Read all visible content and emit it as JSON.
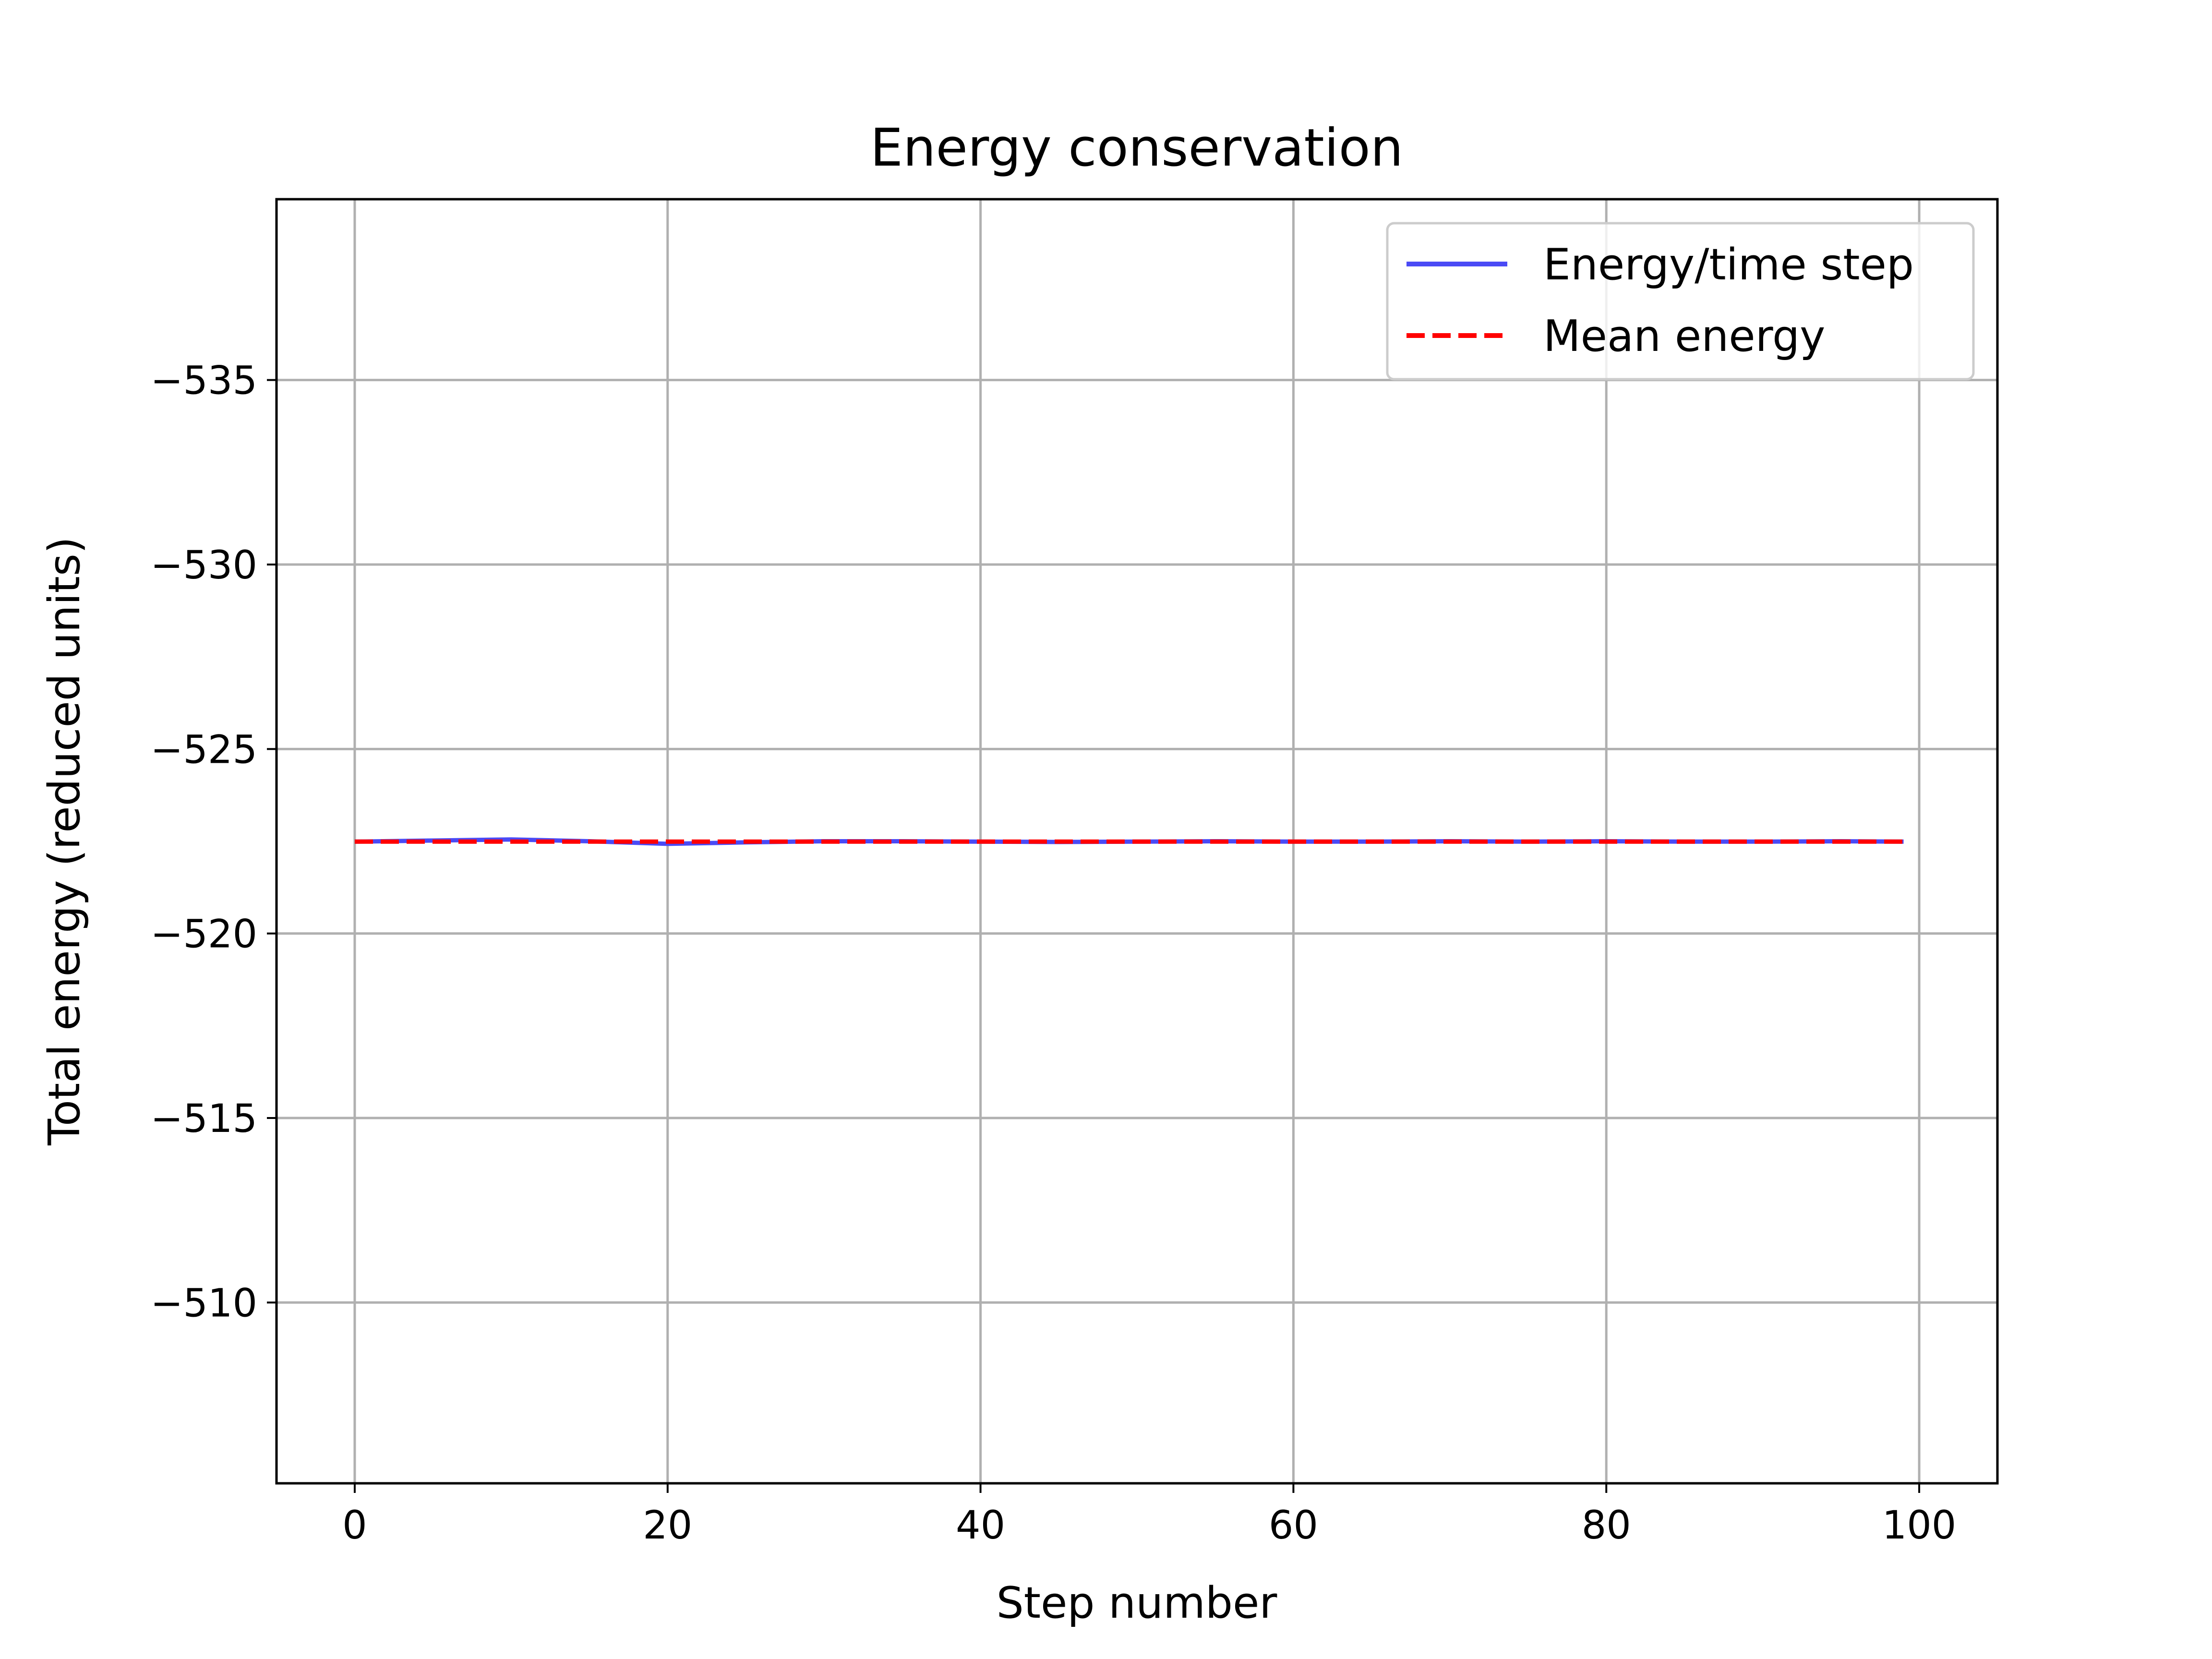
{
  "chart_data": {
    "type": "line",
    "title": "Energy conservation",
    "xlabel": "Step number",
    "ylabel": "Total energy (reduced units)",
    "xlim": [
      -5,
      105
    ],
    "ylim": [
      -539.9,
      -505.1
    ],
    "y_inverted": true,
    "xticks": [
      0,
      20,
      40,
      60,
      80,
      100
    ],
    "xtick_labels": [
      "0",
      "20",
      "40",
      "60",
      "80",
      "100"
    ],
    "yticks": [
      -535,
      -530,
      -525,
      -520,
      -515,
      -510
    ],
    "ytick_labels": [
      "−535",
      "−530",
      "−525",
      "−520",
      "−515",
      "−510"
    ],
    "grid": true,
    "legend_position": "top-right",
    "series": [
      {
        "name": "Energy/time step",
        "color": "#4a4af5",
        "style": "solid",
        "x": [
          0,
          5,
          10,
          15,
          20,
          25,
          30,
          35,
          40,
          45,
          50,
          55,
          60,
          65,
          70,
          75,
          80,
          85,
          90,
          95,
          99
        ],
        "y": [
          -522.49,
          -522.52,
          -522.55,
          -522.5,
          -522.43,
          -522.47,
          -522.5,
          -522.5,
          -522.49,
          -522.48,
          -522.49,
          -522.5,
          -522.49,
          -522.49,
          -522.5,
          -522.49,
          -522.5,
          -522.49,
          -522.49,
          -522.5,
          -522.49
        ]
      },
      {
        "name": "Mean energy",
        "color": "#ff0000",
        "style": "dashed",
        "x": [
          0,
          99
        ],
        "y": [
          -522.49,
          -522.49
        ]
      }
    ]
  }
}
